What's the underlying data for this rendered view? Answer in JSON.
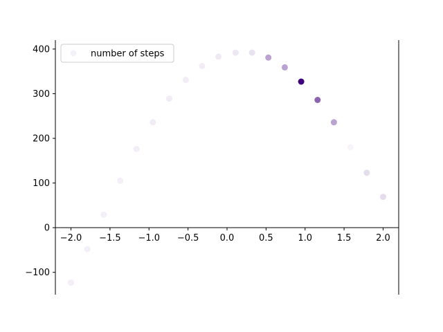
{
  "chart_data": {
    "type": "scatter",
    "title": "",
    "xlabel": "",
    "ylabel": "",
    "xlim": [
      -2.2,
      2.2
    ],
    "ylim": [
      -150,
      420
    ],
    "xticks": [
      -2.0,
      -1.5,
      -1.0,
      -0.5,
      0.0,
      0.5,
      1.0,
      1.5,
      2.0
    ],
    "xtick_labels": [
      "−2.0",
      "−1.5",
      "−1.0",
      "−0.5",
      "0.0",
      "0.5",
      "1.0",
      "1.5",
      "2.0"
    ],
    "yticks": [
      -100,
      0,
      100,
      200,
      300,
      400
    ],
    "ytick_labels": [
      "−100",
      "0",
      "100",
      "200",
      "300",
      "400"
    ],
    "grid": false,
    "colormap": "Purples",
    "color_low": "#fcfbfd",
    "color_high": "#3f007d",
    "legend": {
      "placement": "upper-left",
      "entries": [
        "number of steps"
      ]
    },
    "series": [
      {
        "name": "number of steps",
        "x": [
          -2.0,
          -1.79,
          -1.58,
          -1.37,
          -1.16,
          -0.95,
          -0.74,
          -0.53,
          -0.32,
          -0.11,
          0.11,
          0.32,
          0.53,
          0.74,
          0.95,
          1.16,
          1.37,
          1.58,
          1.79,
          2.0
        ],
        "y": [
          -123,
          -48,
          29,
          105,
          176,
          236,
          289,
          331,
          362,
          383,
          392,
          392,
          381,
          359,
          327,
          286,
          236,
          180,
          123,
          69
        ],
        "color_value": [
          0.05,
          0.05,
          0.05,
          0.05,
          0.05,
          0.06,
          0.06,
          0.06,
          0.06,
          0.07,
          0.08,
          0.1,
          0.35,
          0.35,
          1.0,
          0.6,
          0.35,
          0.03,
          0.12,
          0.12
        ]
      }
    ]
  }
}
